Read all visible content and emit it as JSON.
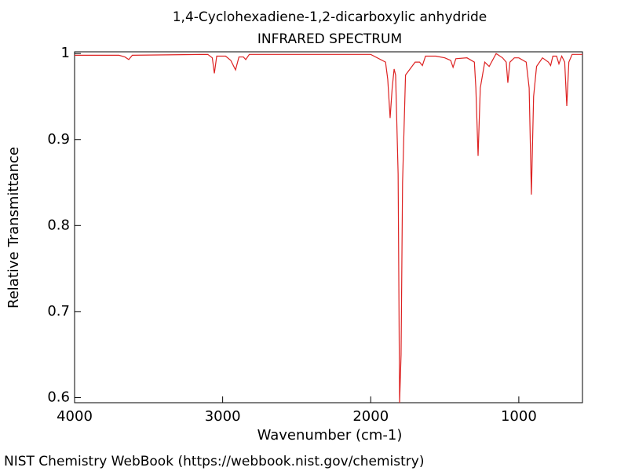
{
  "chart_data": {
    "type": "line",
    "title": "1,4-Cyclohexadiene-1,2-dicarboxylic anhydride",
    "subtitle": "INFRARED SPECTRUM",
    "x_label": "Wavenumber (cm-1)",
    "y_label": "Relative Transmittance",
    "footer": "NIST Chemistry WebBook (https://webbook.nist.gov/chemistry)",
    "xlim": [
      4000,
      570
    ],
    "ylim": [
      0.594,
      1.002
    ],
    "xticks": [
      4000,
      3000,
      2000,
      1000
    ],
    "yticks": [
      1,
      0.9,
      0.8,
      0.7,
      0.6
    ],
    "series": [
      {
        "name": "spectrum",
        "color": "#dd2222",
        "x": [
          4000,
          3700,
          3660,
          3634,
          3610,
          3100,
          3070,
          3056,
          3040,
          2980,
          2945,
          2913,
          2890,
          2860,
          2844,
          2820,
          2000,
          1900,
          1885,
          1869,
          1855,
          1842,
          1832,
          1815,
          1805,
          1795,
          1785,
          1765,
          1700,
          1670,
          1651,
          1630,
          1560,
          1500,
          1460,
          1444,
          1425,
          1350,
          1300,
          1290,
          1275,
          1260,
          1230,
          1200,
          1153,
          1110,
          1085,
          1074,
          1060,
          1030,
          1000,
          950,
          930,
          915,
          900,
          880,
          840,
          800,
          785,
          770,
          745,
          729,
          710,
          690,
          676,
          662,
          640,
          570
        ],
        "values": [
          0.998,
          0.998,
          0.996,
          0.993,
          0.998,
          0.999,
          0.995,
          0.977,
          0.997,
          0.997,
          0.992,
          0.981,
          0.996,
          0.996,
          0.993,
          0.999,
          0.999,
          0.99,
          0.97,
          0.925,
          0.96,
          0.982,
          0.975,
          0.86,
          0.594,
          0.65,
          0.85,
          0.975,
          0.99,
          0.99,
          0.986,
          0.997,
          0.997,
          0.995,
          0.992,
          0.984,
          0.994,
          0.995,
          0.99,
          0.96,
          0.881,
          0.96,
          0.99,
          0.985,
          1.0,
          0.995,
          0.99,
          0.966,
          0.99,
          0.995,
          0.995,
          0.99,
          0.96,
          0.836,
          0.95,
          0.985,
          0.995,
          0.99,
          0.986,
          0.997,
          0.997,
          0.988,
          0.997,
          0.99,
          0.939,
          0.99,
          0.999,
          0.999
        ]
      }
    ]
  }
}
